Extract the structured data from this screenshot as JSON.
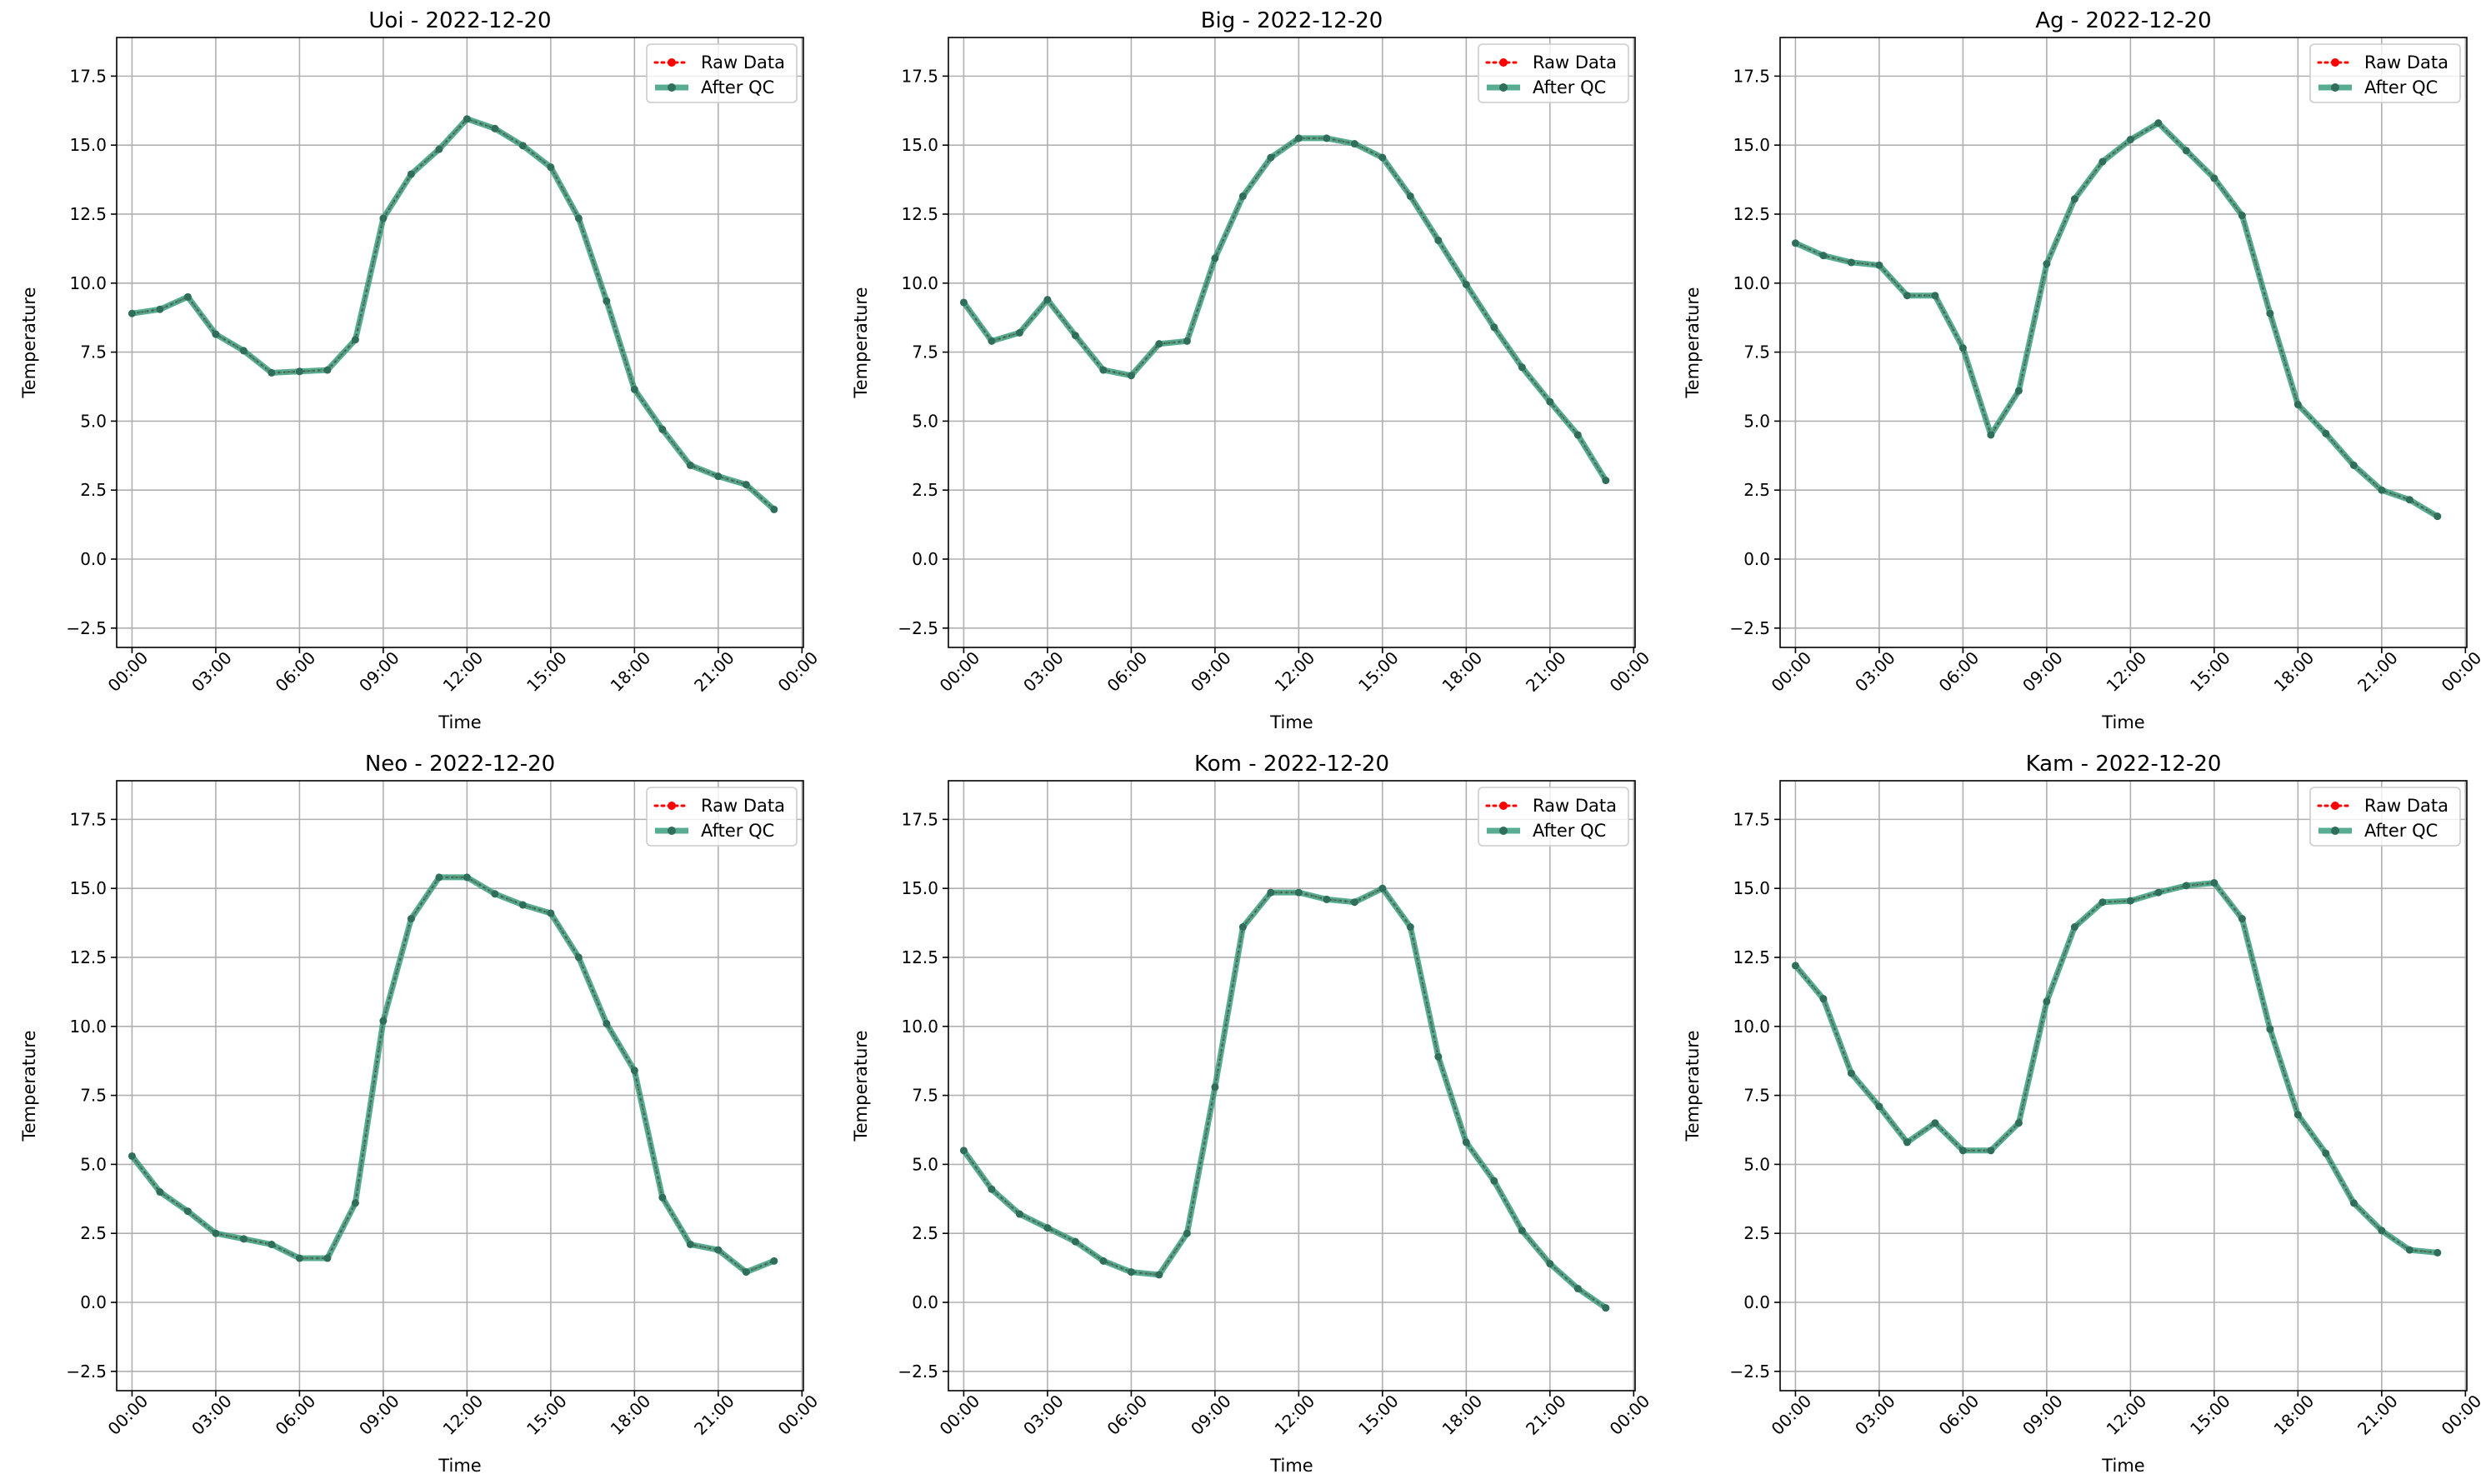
{
  "chart_data": [
    {
      "type": "line",
      "title": "Uoi - 2022-12-20",
      "xlabel": "Time",
      "ylabel": "Temperature",
      "xticks": [
        "00:00",
        "03:00",
        "06:00",
        "09:00",
        "12:00",
        "15:00",
        "18:00",
        "21:00",
        "00:00"
      ],
      "yticks": [
        "−2.5",
        "0.0",
        "2.5",
        "5.0",
        "7.5",
        "10.0",
        "12.5",
        "15.0",
        "17.5"
      ],
      "ylim": [
        -3.2,
        18.9
      ],
      "xlim_hours": [
        -0.55,
        24.05
      ],
      "grid": true,
      "legend": "top-right",
      "x_hours": [
        0,
        1,
        2,
        3,
        4,
        5,
        6,
        7,
        8,
        9,
        10,
        11,
        12,
        13,
        14,
        15,
        16,
        17,
        18,
        19,
        20,
        21,
        22,
        23
      ],
      "series": [
        {
          "name": "Raw Data",
          "color": "#ff0000",
          "style": "dotted",
          "values": [
            8.9,
            9.05,
            9.5,
            8.15,
            7.55,
            6.75,
            6.8,
            6.85,
            7.95,
            12.35,
            13.95,
            14.85,
            15.95,
            15.6,
            14.98,
            14.2,
            12.35,
            9.35,
            6.15,
            4.7,
            3.4,
            3.0,
            2.7,
            1.8
          ]
        },
        {
          "name": "After QC",
          "color": "#3a9e7e",
          "style": "solid",
          "values": [
            8.9,
            9.05,
            9.5,
            8.15,
            7.55,
            6.75,
            6.8,
            6.85,
            7.95,
            12.35,
            13.95,
            14.85,
            15.95,
            15.6,
            14.98,
            14.2,
            12.35,
            9.35,
            6.15,
            4.7,
            3.4,
            3.0,
            2.7,
            1.8
          ]
        }
      ]
    },
    {
      "type": "line",
      "title": "Big - 2022-12-20",
      "xlabel": "Time",
      "ylabel": "Temperature",
      "xticks": [
        "00:00",
        "03:00",
        "06:00",
        "09:00",
        "12:00",
        "15:00",
        "18:00",
        "21:00",
        "00:00"
      ],
      "yticks": [
        "−2.5",
        "0.0",
        "2.5",
        "5.0",
        "7.5",
        "10.0",
        "12.5",
        "15.0",
        "17.5"
      ],
      "ylim": [
        -3.2,
        18.9
      ],
      "xlim_hours": [
        -0.55,
        24.05
      ],
      "grid": true,
      "legend": "top-right",
      "x_hours": [
        0,
        1,
        2,
        3,
        4,
        5,
        6,
        7,
        8,
        9,
        10,
        11,
        12,
        13,
        14,
        15,
        16,
        17,
        18,
        19,
        20,
        21,
        22,
        23
      ],
      "series": [
        {
          "name": "Raw Data",
          "color": "#ff0000",
          "style": "dotted",
          "values": [
            9.3,
            7.9,
            8.2,
            9.4,
            8.1,
            6.85,
            6.65,
            7.8,
            7.9,
            10.9,
            13.15,
            14.55,
            15.25,
            15.25,
            15.05,
            14.55,
            13.15,
            11.55,
            9.95,
            8.4,
            6.95,
            5.7,
            4.5,
            2.85
          ]
        },
        {
          "name": "After QC",
          "color": "#3a9e7e",
          "style": "solid",
          "values": [
            9.3,
            7.9,
            8.2,
            9.4,
            8.1,
            6.85,
            6.65,
            7.8,
            7.9,
            10.9,
            13.15,
            14.55,
            15.25,
            15.25,
            15.05,
            14.55,
            13.15,
            11.55,
            9.95,
            8.4,
            6.95,
            5.7,
            4.5,
            2.85
          ]
        }
      ]
    },
    {
      "type": "line",
      "title": "Ag - 2022-12-20",
      "xlabel": "Time",
      "ylabel": "Temperature",
      "xticks": [
        "00:00",
        "03:00",
        "06:00",
        "09:00",
        "12:00",
        "15:00",
        "18:00",
        "21:00",
        "00:00"
      ],
      "yticks": [
        "−2.5",
        "0.0",
        "2.5",
        "5.0",
        "7.5",
        "10.0",
        "12.5",
        "15.0",
        "17.5"
      ],
      "ylim": [
        -3.2,
        18.9
      ],
      "xlim_hours": [
        -0.55,
        24.05
      ],
      "grid": true,
      "legend": "top-right",
      "x_hours": [
        0,
        1,
        2,
        3,
        4,
        5,
        6,
        7,
        8,
        9,
        10,
        11,
        12,
        13,
        14,
        15,
        16,
        17,
        18,
        19,
        20,
        21,
        22,
        23
      ],
      "series": [
        {
          "name": "Raw Data",
          "color": "#ff0000",
          "style": "dotted",
          "values": [
            11.45,
            11.0,
            10.75,
            10.65,
            9.55,
            9.55,
            7.65,
            4.5,
            6.1,
            10.7,
            13.05,
            14.4,
            15.2,
            15.8,
            14.8,
            13.8,
            12.45,
            8.9,
            5.6,
            4.55,
            3.4,
            2.5,
            2.15,
            1.55
          ]
        },
        {
          "name": "After QC",
          "color": "#3a9e7e",
          "style": "solid",
          "values": [
            11.45,
            11.0,
            10.75,
            10.65,
            9.55,
            9.55,
            7.65,
            4.5,
            6.1,
            10.7,
            13.05,
            14.4,
            15.2,
            15.8,
            14.8,
            13.8,
            12.45,
            8.9,
            5.6,
            4.55,
            3.4,
            2.5,
            2.15,
            1.55
          ]
        }
      ]
    },
    {
      "type": "line",
      "title": "Neo - 2022-12-20",
      "xlabel": "Time",
      "ylabel": "Temperature",
      "xticks": [
        "00:00",
        "03:00",
        "06:00",
        "09:00",
        "12:00",
        "15:00",
        "18:00",
        "21:00",
        "00:00"
      ],
      "yticks": [
        "−2.5",
        "0.0",
        "2.5",
        "5.0",
        "7.5",
        "10.0",
        "12.5",
        "15.0",
        "17.5"
      ],
      "ylim": [
        -3.2,
        18.9
      ],
      "xlim_hours": [
        -0.55,
        24.05
      ],
      "grid": true,
      "legend": "top-right",
      "x_hours": [
        0,
        1,
        2,
        3,
        4,
        5,
        6,
        7,
        8,
        9,
        10,
        11,
        12,
        13,
        14,
        15,
        16,
        17,
        18,
        19,
        20,
        21,
        22,
        23
      ],
      "series": [
        {
          "name": "Raw Data",
          "color": "#ff0000",
          "style": "dotted",
          "values": [
            5.3,
            4.0,
            3.3,
            2.5,
            2.3,
            2.1,
            1.6,
            1.6,
            3.6,
            10.2,
            13.9,
            15.4,
            15.4,
            14.8,
            14.4,
            14.1,
            12.5,
            10.1,
            8.4,
            3.8,
            2.1,
            1.9,
            1.1,
            1.5
          ]
        },
        {
          "name": "After QC",
          "color": "#3a9e7e",
          "style": "solid",
          "values": [
            5.3,
            4.0,
            3.3,
            2.5,
            2.3,
            2.1,
            1.6,
            1.6,
            3.6,
            10.2,
            13.9,
            15.4,
            15.4,
            14.8,
            14.4,
            14.1,
            12.5,
            10.1,
            8.4,
            3.8,
            2.1,
            1.9,
            1.1,
            1.5
          ]
        }
      ]
    },
    {
      "type": "line",
      "title": "Kom - 2022-12-20",
      "xlabel": "Time",
      "ylabel": "Temperature",
      "xticks": [
        "00:00",
        "03:00",
        "06:00",
        "09:00",
        "12:00",
        "15:00",
        "18:00",
        "21:00",
        "00:00"
      ],
      "yticks": [
        "−2.5",
        "0.0",
        "2.5",
        "5.0",
        "7.5",
        "10.0",
        "12.5",
        "15.0",
        "17.5"
      ],
      "ylim": [
        -3.2,
        18.9
      ],
      "xlim_hours": [
        -0.55,
        24.05
      ],
      "grid": true,
      "legend": "top-right",
      "x_hours": [
        0,
        1,
        2,
        3,
        4,
        5,
        6,
        7,
        8,
        9,
        10,
        11,
        12,
        13,
        14,
        15,
        16,
        17,
        18,
        19,
        20,
        21,
        22,
        23
      ],
      "series": [
        {
          "name": "Raw Data",
          "color": "#ff0000",
          "style": "dotted",
          "values": [
            5.5,
            4.1,
            3.2,
            2.7,
            2.2,
            1.5,
            1.1,
            1.0,
            2.5,
            7.8,
            13.6,
            14.85,
            14.85,
            14.6,
            14.5,
            15.0,
            13.6,
            8.9,
            5.8,
            4.4,
            2.6,
            1.4,
            0.5,
            -0.2
          ]
        },
        {
          "name": "After QC",
          "color": "#3a9e7e",
          "style": "solid",
          "values": [
            5.5,
            4.1,
            3.2,
            2.7,
            2.2,
            1.5,
            1.1,
            1.0,
            2.5,
            7.8,
            13.6,
            14.85,
            14.85,
            14.6,
            14.5,
            15.0,
            13.6,
            8.9,
            5.8,
            4.4,
            2.6,
            1.4,
            0.5,
            -0.2
          ]
        }
      ]
    },
    {
      "type": "line",
      "title": "Kam - 2022-12-20",
      "xlabel": "Time",
      "ylabel": "Temperature",
      "xticks": [
        "00:00",
        "03:00",
        "06:00",
        "09:00",
        "12:00",
        "15:00",
        "18:00",
        "21:00",
        "00:00"
      ],
      "yticks": [
        "−2.5",
        "0.0",
        "2.5",
        "5.0",
        "7.5",
        "10.0",
        "12.5",
        "15.0",
        "17.5"
      ],
      "ylim": [
        -3.2,
        18.9
      ],
      "xlim_hours": [
        -0.55,
        24.05
      ],
      "grid": true,
      "legend": "top-right",
      "x_hours": [
        0,
        1,
        2,
        3,
        4,
        5,
        6,
        7,
        8,
        9,
        10,
        11,
        12,
        13,
        14,
        15,
        16,
        17,
        18,
        19,
        20,
        21,
        22,
        23
      ],
      "series": [
        {
          "name": "Raw Data",
          "color": "#ff0000",
          "style": "dotted",
          "values": [
            12.2,
            11.0,
            8.3,
            7.1,
            5.8,
            6.5,
            5.5,
            5.5,
            6.5,
            10.9,
            13.6,
            14.5,
            14.55,
            14.85,
            15.1,
            15.2,
            13.9,
            9.9,
            6.8,
            5.4,
            3.6,
            2.6,
            1.9,
            1.8
          ]
        },
        {
          "name": "After QC",
          "color": "#3a9e7e",
          "style": "solid",
          "values": [
            12.2,
            11.0,
            8.3,
            7.1,
            5.8,
            6.5,
            5.5,
            5.5,
            6.5,
            10.9,
            13.6,
            14.5,
            14.55,
            14.85,
            15.1,
            15.2,
            13.9,
            9.9,
            6.8,
            5.4,
            3.6,
            2.6,
            1.9,
            1.8
          ]
        }
      ]
    }
  ]
}
